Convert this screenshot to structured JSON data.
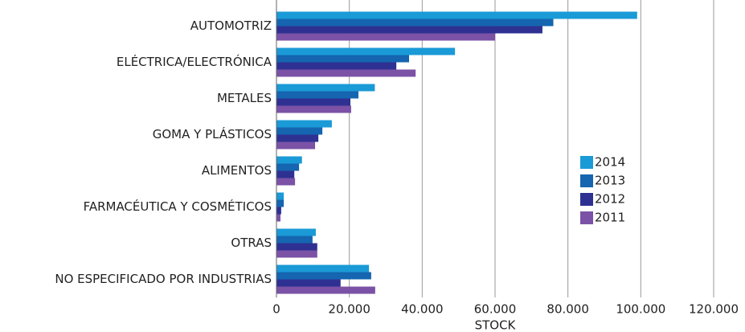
{
  "chart_data": {
    "type": "hbar",
    "x_label": "STOCK",
    "categories": [
      "AUTOMOTRIZ",
      "ELÉCTRICA/ELECTRÓNICA",
      "METALES",
      "GOMA Y PLÁSTICOS",
      "ALIMENTOS",
      "FARMACÉUTICA Y COSMÉTICOS",
      "OTRAS",
      "NO ESPECIFICADO POR INDUSTRIAS"
    ],
    "series": [
      {
        "name": "2014",
        "color": "#1a9ad6",
        "values": [
          99000,
          49000,
          27000,
          15200,
          7000,
          2000,
          10800,
          25400
        ]
      },
      {
        "name": "2013",
        "color": "#1565b0",
        "values": [
          76000,
          36400,
          22500,
          12600,
          6200,
          2000,
          9900,
          26000
        ]
      },
      {
        "name": "2012",
        "color": "#2e3192",
        "values": [
          73000,
          32900,
          20300,
          11500,
          4900,
          1300,
          11200,
          17600
        ]
      },
      {
        "name": "2011",
        "color": "#7b52a6",
        "values": [
          60000,
          38200,
          20500,
          10600,
          5100,
          1100,
          11200,
          27100
        ]
      }
    ],
    "xlim": [
      0,
      120000
    ],
    "xticks": [
      0,
      {
        "value": 20000,
        "label": "20.000"
      },
      {
        "value": 40000,
        "label": "40.000"
      },
      {
        "value": 60000,
        "label": "60.000"
      },
      {
        "value": 80000,
        "label": "80.000"
      },
      {
        "value": 100000,
        "label": "100.000"
      },
      {
        "value": 120000,
        "label": "120.000"
      }
    ],
    "grid": true,
    "legend": "right"
  }
}
